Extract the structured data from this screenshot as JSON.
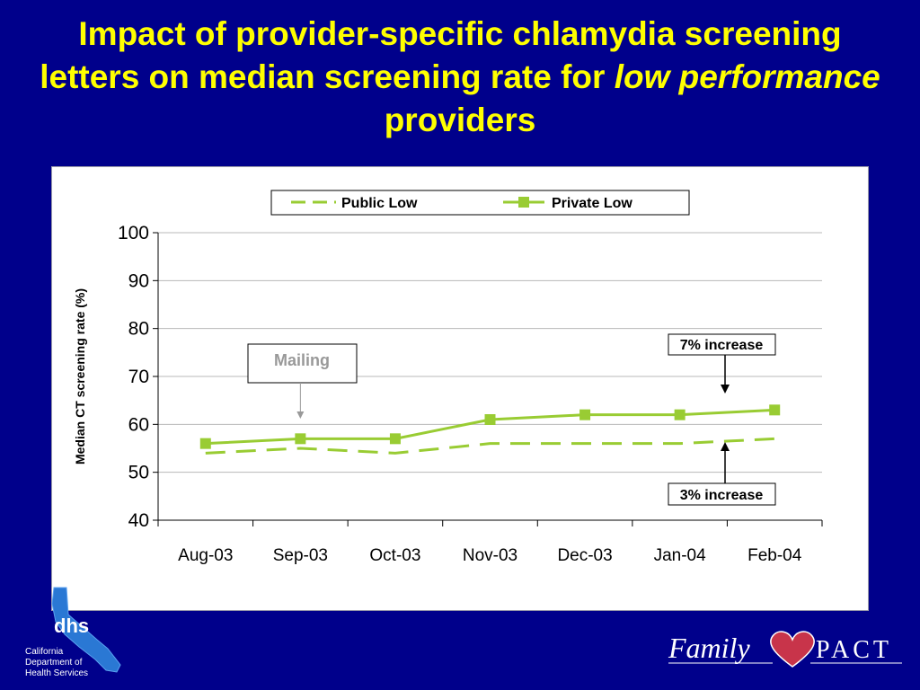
{
  "slide": {
    "title_part1": "Impact of provider-specific chlamydia screening letters on median screening rate for",
    "title_emphasis": "low performance",
    "title_part2": "providers"
  },
  "colors": {
    "background": "#00008b",
    "title": "#ffff00",
    "series": "#99cc33",
    "annotation_text": "#999999"
  },
  "chart_data": {
    "type": "line",
    "title": "",
    "xlabel": "",
    "ylabel": "Median CT screening rate (%)",
    "ylim": [
      40,
      100
    ],
    "yticks": [
      40,
      50,
      60,
      70,
      80,
      90,
      100
    ],
    "grid": true,
    "legend_placement": "top",
    "categories": [
      "Aug-03",
      "Sep-03",
      "Oct-03",
      "Nov-03",
      "Dec-03",
      "Jan-04",
      "Feb-04"
    ],
    "series": [
      {
        "name": "Public Low",
        "style": "dashed",
        "color": "#99cc33",
        "values": [
          54,
          55,
          54,
          56,
          56,
          56,
          57
        ]
      },
      {
        "name": "Private Low",
        "style": "solid-square-markers",
        "color": "#99cc33",
        "values": [
          56,
          57,
          57,
          61,
          62,
          62,
          63
        ]
      }
    ],
    "annotations": [
      {
        "label": "Mailing",
        "category": "Sep-03"
      },
      {
        "label": "7% increase",
        "category": "Feb-04",
        "series": "Private Low"
      },
      {
        "label": "3% increase",
        "category": "Feb-04",
        "series": "Public Low"
      }
    ]
  },
  "logos": {
    "dhs": {
      "mark": "dhs",
      "caption": [
        "California",
        "Department of",
        "Health Services"
      ]
    },
    "familypact": {
      "word1": "Family",
      "word2": "PACT"
    }
  }
}
